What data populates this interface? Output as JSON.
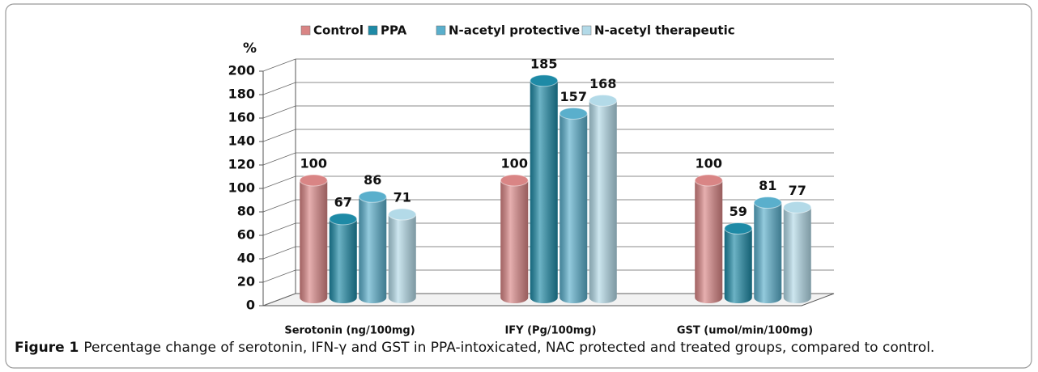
{
  "chart_data": {
    "type": "bar",
    "legend": "top",
    "ylabel": "%",
    "categories": [
      "Serotonin (ng/100mg)",
      "IFY (Pg/100mg)",
      "GST (umol/min/100mg)"
    ],
    "series": [
      {
        "name": "Control",
        "color": "#d98585",
        "values": [
          100,
          100,
          100
        ]
      },
      {
        "name": "PPA",
        "color": "#1e8aa6",
        "values": [
          67,
          185,
          59
        ]
      },
      {
        "name": "N-acetyl protective",
        "color": "#5aafcc",
        "values": [
          86,
          157,
          81
        ]
      },
      {
        "name": "N-acetyl therapeutic",
        "color": "#b3dae8",
        "values": [
          71,
          168,
          77
        ]
      }
    ],
    "ylim": [
      0,
      200
    ],
    "yticks": [
      0,
      20,
      40,
      60,
      80,
      100,
      120,
      140,
      160,
      180,
      200
    ],
    "grid": true,
    "caption": {
      "label": "Figure 1",
      "text": "Percentage change of serotonin, IFN-γ and GST in PPA-intoxicated, NAC protected and treated groups, compared to control."
    }
  }
}
